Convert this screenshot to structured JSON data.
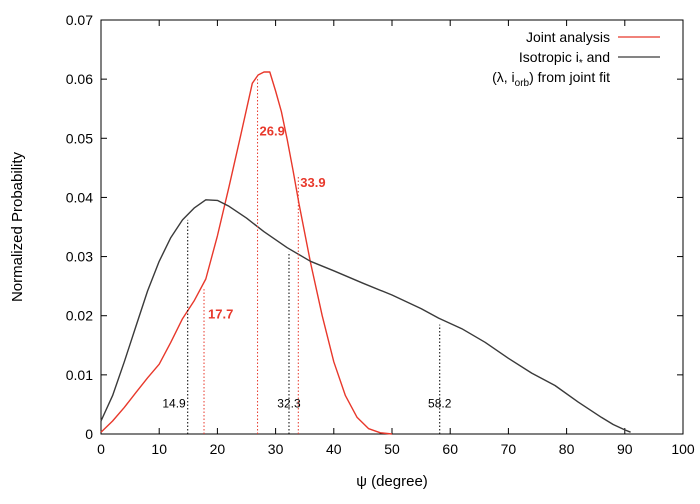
{
  "chart_data": {
    "type": "line",
    "xlabel": "ψ (degree)",
    "ylabel": "Normalized Probability",
    "xlim": [
      0,
      100
    ],
    "ylim": [
      0,
      0.07
    ],
    "x_ticks": [
      "0",
      "10",
      "20",
      "30",
      "40",
      "50",
      "60",
      "70",
      "80",
      "90",
      "100"
    ],
    "y_ticks": [
      "0",
      "0.01",
      "0.02",
      "0.03",
      "0.04",
      "0.05",
      "0.06",
      "0.07"
    ],
    "grid": false,
    "legend_position": "top-right",
    "series": [
      {
        "name": "Joint analysis",
        "color": "#e8382b",
        "x": [
          0,
          2,
          4,
          6,
          8,
          10,
          12,
          14,
          16,
          18,
          20,
          22,
          24,
          26,
          27,
          28,
          29,
          30,
          31,
          32,
          33,
          34,
          36,
          38,
          40,
          42,
          44,
          46,
          48,
          50
        ],
        "y": [
          0.0003,
          0.0022,
          0.0045,
          0.007,
          0.0095,
          0.0118,
          0.0155,
          0.0195,
          0.0225,
          0.0262,
          0.0335,
          0.0418,
          0.0505,
          0.0593,
          0.0607,
          0.0612,
          0.0612,
          0.058,
          0.0545,
          0.0498,
          0.0445,
          0.039,
          0.029,
          0.02,
          0.0122,
          0.0065,
          0.0028,
          0.0009,
          0.0002,
          0.0
        ]
      },
      {
        "name": "Isotropic i* and (λ, i_orb) from joint fit",
        "color": "#3a3a3a",
        "x": [
          0,
          2,
          4,
          6,
          8,
          10,
          12,
          14,
          16,
          18,
          20,
          22,
          25,
          28,
          32,
          36,
          40,
          45,
          50,
          55,
          58,
          62,
          66,
          70,
          74,
          78,
          82,
          86,
          88,
          90,
          91
        ],
        "y": [
          0.0022,
          0.0065,
          0.0122,
          0.0182,
          0.0242,
          0.0292,
          0.0332,
          0.0362,
          0.0382,
          0.0396,
          0.0395,
          0.0385,
          0.0365,
          0.0342,
          0.0315,
          0.0292,
          0.0276,
          0.0255,
          0.0235,
          0.0212,
          0.0196,
          0.0178,
          0.0155,
          0.0128,
          0.0103,
          0.0082,
          0.0054,
          0.0028,
          0.0016,
          0.0007,
          0.0003
        ]
      }
    ],
    "markers": [
      {
        "x": 14.9,
        "y": 0.0362,
        "label": "14.9",
        "series": "isotropic"
      },
      {
        "x": 32.3,
        "y": 0.0308,
        "label": "32.3",
        "series": "isotropic"
      },
      {
        "x": 58.2,
        "y": 0.0185,
        "label": "58.2",
        "series": "isotropic"
      },
      {
        "x": 17.7,
        "y": 0.0245,
        "label": "17.7",
        "series": "joint"
      },
      {
        "x": 26.9,
        "y": 0.06,
        "label": "26.9",
        "series": "joint"
      },
      {
        "x": 33.9,
        "y": 0.0435,
        "label": "33.9",
        "series": "joint"
      }
    ]
  },
  "legend": {
    "entry1": "Joint analysis",
    "entry2_line1_a": "Isotropic i",
    "entry2_line1_sub": "*",
    "entry2_line1_b": " and",
    "entry2_line2_a": "(λ, i",
    "entry2_line2_sub": "orb",
    "entry2_line2_b": ") from joint fit"
  }
}
